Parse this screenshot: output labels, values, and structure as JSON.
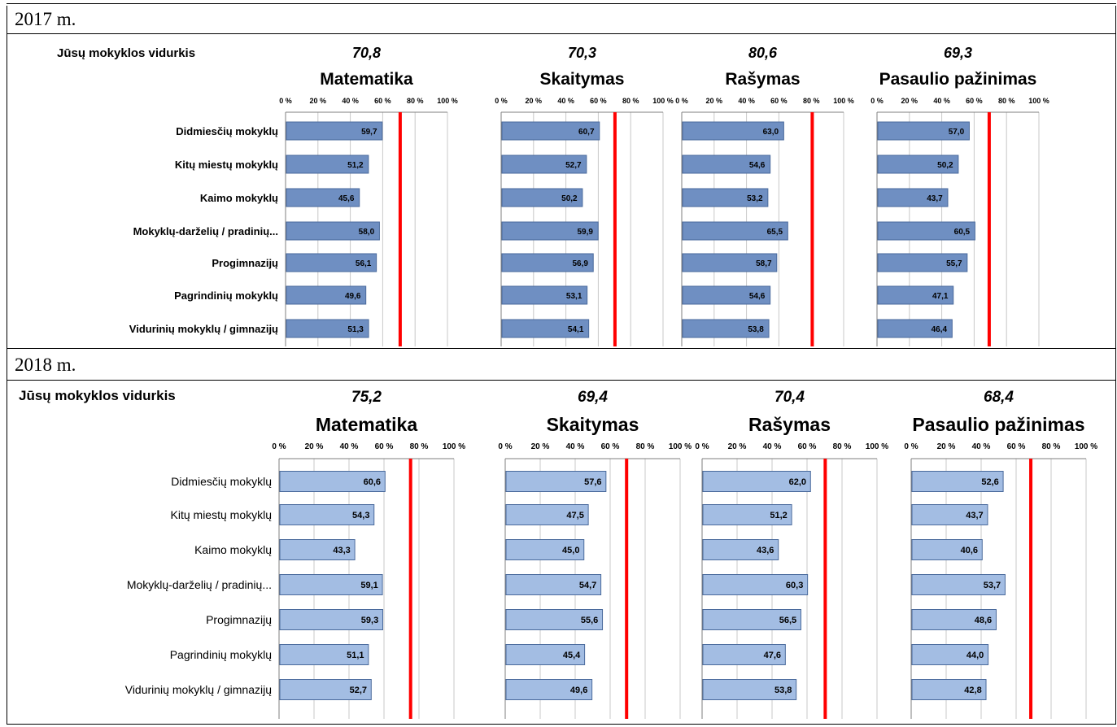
{
  "sections": [
    {
      "year_label": "2017 m.",
      "row_label_header": "Jūsų mokyklos vidurkis",
      "style": "2017"
    },
    {
      "year_label": "2018 m.",
      "row_label_header": "Jūsų mokyklos vidurkis",
      "style": "2018"
    }
  ],
  "chart_data": [
    {
      "type": "bar",
      "orientation": "horizontal",
      "year": "2017 m.",
      "categories": [
        "Didmiesčių mokyklų",
        "Kitų miestų mokyklų",
        "Kaimo mokyklų",
        "Mokyklų-darželių / pradinių...",
        "Progimnazijų",
        "Pagrindinių mokyklų",
        "Vidurinių mokyklų / gimnazijų"
      ],
      "xlim": [
        0,
        100
      ],
      "tick_labels": [
        "0 %",
        "20 %",
        "40 %",
        "60 %",
        "80 %",
        "100 %"
      ],
      "reference_line_color": "#ff0000",
      "bar_color": "#6f8fc2",
      "panels": [
        {
          "title": "Matematika",
          "school_average": 70.8,
          "school_average_label": "70,8",
          "values": [
            59.7,
            51.2,
            45.6,
            58.0,
            56.1,
            49.6,
            51.3
          ],
          "value_labels": [
            "59,7",
            "51,2",
            "45,6",
            "58,0",
            "56,1",
            "49,6",
            "51,3"
          ]
        },
        {
          "title": "Skaitymas",
          "school_average": 70.3,
          "school_average_label": "70,3",
          "values": [
            60.7,
            52.7,
            50.2,
            59.9,
            56.9,
            53.1,
            54.1
          ],
          "value_labels": [
            "60,7",
            "52,7",
            "50,2",
            "59,9",
            "56,9",
            "53,1",
            "54,1"
          ]
        },
        {
          "title": "Rašymas",
          "school_average": 80.6,
          "school_average_label": "80,6",
          "values": [
            63.0,
            54.6,
            53.2,
            65.5,
            58.7,
            54.6,
            53.8
          ],
          "value_labels": [
            "63,0",
            "54,6",
            "53,2",
            "65,5",
            "58,7",
            "54,6",
            "53,8"
          ]
        },
        {
          "title": "Pasaulio pažinimas",
          "school_average": 69.3,
          "school_average_label": "69,3",
          "values": [
            57.0,
            50.2,
            43.7,
            60.5,
            55.7,
            47.1,
            46.4
          ],
          "value_labels": [
            "57,0",
            "50,2",
            "43,7",
            "60,5",
            "55,7",
            "47,1",
            "46,4"
          ]
        }
      ]
    },
    {
      "type": "bar",
      "orientation": "horizontal",
      "year": "2018 m.",
      "categories": [
        "Didmiesčių mokyklų",
        "Kitų miestų mokyklų",
        "Kaimo mokyklų",
        "Mokyklų-darželių / pradinių...",
        "Progimnazijų",
        "Pagrindinių mokyklų",
        "Vidurinių mokyklų / gimnazijų"
      ],
      "xlim": [
        0,
        100
      ],
      "tick_labels": [
        "0 %",
        "20 %",
        "40 %",
        "60 %",
        "80 %",
        "100 %"
      ],
      "reference_line_color": "#ff0000",
      "bar_color": "#a3bde3",
      "panels": [
        {
          "title": "Matematika",
          "school_average": 75.2,
          "school_average_label": "75,2",
          "values": [
            60.6,
            54.3,
            43.3,
            59.1,
            59.3,
            51.1,
            52.7
          ],
          "value_labels": [
            "60,6",
            "54,3",
            "43,3",
            "59,1",
            "59,3",
            "51,1",
            "52,7"
          ]
        },
        {
          "title": "Skaitymas",
          "school_average": 69.4,
          "school_average_label": "69,4",
          "values": [
            57.6,
            47.5,
            45.0,
            54.7,
            55.6,
            45.4,
            49.6
          ],
          "value_labels": [
            "57,6",
            "47,5",
            "45,0",
            "54,7",
            "55,6",
            "45,4",
            "49,6"
          ]
        },
        {
          "title": "Rašymas",
          "school_average": 70.4,
          "school_average_label": "70,4",
          "values": [
            62.0,
            51.2,
            43.6,
            60.3,
            56.5,
            47.6,
            53.8
          ],
          "value_labels": [
            "62,0",
            "51,2",
            "43,6",
            "60,3",
            "56,5",
            "47,6",
            "53,8"
          ]
        },
        {
          "title": "Pasaulio pažinimas",
          "school_average": 68.4,
          "school_average_label": "68,4",
          "values": [
            52.6,
            43.7,
            40.6,
            53.7,
            48.6,
            44.0,
            42.8
          ],
          "value_labels": [
            "52,6",
            "43,7",
            "40,6",
            "53,7",
            "48,6",
            "44,0",
            "42,8"
          ]
        }
      ]
    }
  ]
}
